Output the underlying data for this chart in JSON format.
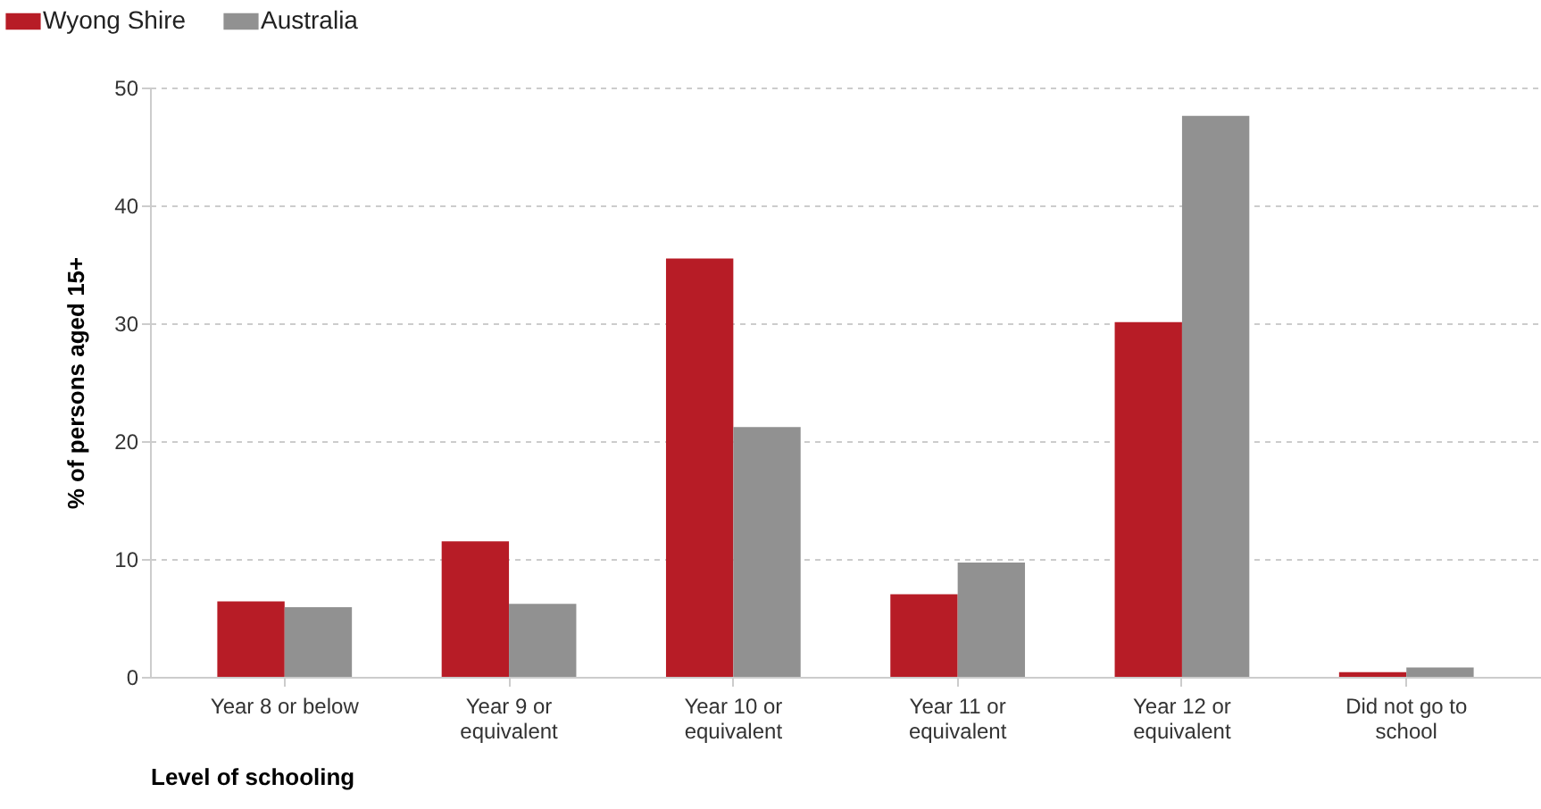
{
  "chart_data": {
    "type": "bar",
    "xlabel": "Level of schooling",
    "ylabel": "% of persons aged 15+",
    "categories": [
      "Year 8 or below",
      "Year 9 or equivalent",
      "Year 10 or equivalent",
      "Year 11 or equivalent",
      "Year 12 or equivalent",
      "Did not go to school"
    ],
    "series": [
      {
        "name": "Wyong Shire",
        "color": "#b71c26",
        "values": [
          6.4,
          11.5,
          35.5,
          7.0,
          30.1,
          0.4
        ]
      },
      {
        "name": "Australia",
        "color": "#919191",
        "values": [
          5.9,
          6.2,
          21.2,
          9.7,
          47.6,
          0.8
        ]
      }
    ],
    "ylim": [
      0,
      50
    ],
    "yticks": [
      0,
      10,
      20,
      30,
      40,
      50
    ],
    "grid": "y",
    "legend": "top left"
  }
}
